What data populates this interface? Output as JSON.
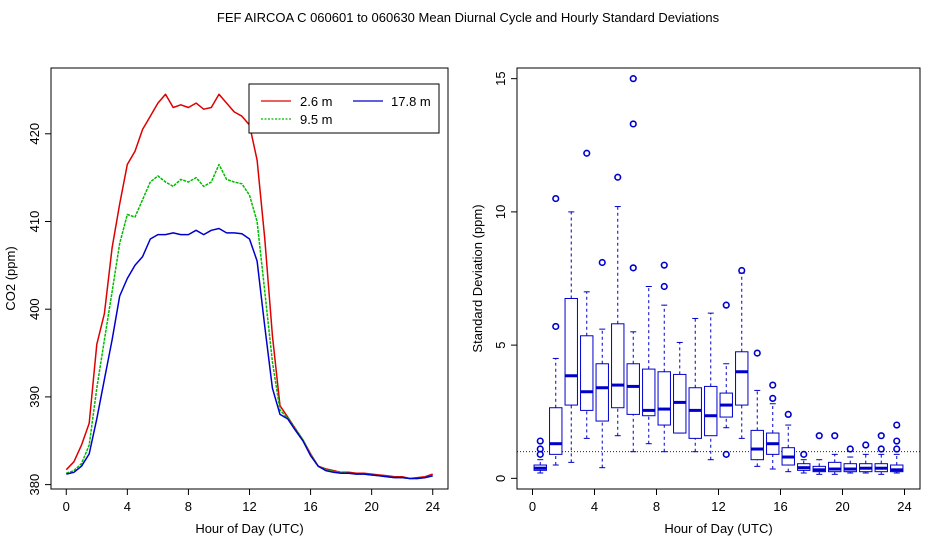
{
  "title": "FEF   AIRCOA C   060601 to 060630   Mean Diurnal Cycle and Hourly Standard Deviations",
  "colors": {
    "red": "#dd0000",
    "green": "#00bb00",
    "blue": "#0000cc",
    "box": "#0000cc"
  },
  "chart_data": [
    {
      "type": "line",
      "xlabel": "Hour of Day (UTC)",
      "ylabel": "CO2 (ppm)",
      "xlim": [
        -1,
        25
      ],
      "ylim": [
        379.5,
        427.5
      ],
      "xticks": [
        0,
        4,
        8,
        12,
        16,
        20,
        24
      ],
      "yticks": [
        380,
        390,
        400,
        410,
        420
      ],
      "legend_position": "top-right",
      "series": [
        {
          "name": "2.6 m",
          "color": "#dd0000",
          "x": [
            0,
            0.5,
            1,
            1.5,
            2,
            2.5,
            3,
            3.5,
            4,
            4.5,
            5,
            5.5,
            6,
            6.5,
            7,
            7.5,
            8,
            8.5,
            9,
            9.5,
            10,
            10.5,
            11,
            11.5,
            12,
            12.5,
            13,
            13.5,
            14,
            14.5,
            15,
            15.5,
            16,
            16.5,
            17,
            17.5,
            18,
            18.5,
            19,
            19.5,
            20,
            20.5,
            21,
            21.5,
            22,
            22.5,
            23,
            23.5,
            24
          ],
          "y": [
            381.7,
            382.6,
            384.5,
            387.0,
            396.0,
            399.5,
            407.0,
            412.0,
            416.5,
            418.0,
            420.5,
            422.0,
            423.5,
            424.5,
            423.0,
            423.3,
            423.0,
            423.5,
            422.8,
            423.0,
            424.5,
            423.5,
            422.5,
            422.0,
            421.0,
            417.0,
            408.0,
            397.0,
            389.0,
            387.7,
            386.4,
            385.1,
            383.5,
            382.1,
            381.8,
            381.6,
            381.4,
            381.4,
            381.3,
            381.3,
            381.2,
            381.1,
            381.0,
            380.9,
            380.9,
            380.7,
            380.8,
            380.9,
            381.2
          ]
        },
        {
          "name": "9.5 m",
          "color": "#00bb00",
          "x": [
            0,
            0.5,
            1,
            1.5,
            2,
            2.5,
            3,
            3.5,
            4,
            4.5,
            5,
            5.5,
            6,
            6.5,
            7,
            7.5,
            8,
            8.5,
            9,
            9.5,
            10,
            10.5,
            11,
            11.5,
            12,
            12.5,
            13,
            13.5,
            14,
            14.5,
            15,
            15.5,
            16,
            16.5,
            17,
            17.5,
            18,
            18.5,
            19,
            19.5,
            20,
            20.5,
            21,
            21.5,
            22,
            22.5,
            23,
            23.5,
            24
          ],
          "y": [
            381.3,
            381.6,
            382.4,
            384.5,
            391.0,
            396.5,
            402.0,
            407.5,
            410.8,
            410.5,
            412.5,
            414.5,
            415.2,
            414.5,
            414.0,
            414.8,
            414.5,
            415.0,
            414.0,
            414.5,
            416.5,
            414.8,
            414.5,
            414.3,
            413.0,
            410.0,
            402.0,
            394.0,
            388.5,
            387.6,
            386.4,
            385.1,
            383.4,
            382.1,
            381.7,
            381.5,
            381.4,
            381.3,
            381.2,
            381.2,
            381.1,
            381.0,
            380.9,
            380.8,
            380.8,
            380.7,
            380.7,
            380.8,
            381.0
          ]
        },
        {
          "name": "17.8 m",
          "color": "#0000cc",
          "x": [
            0,
            0.5,
            1,
            1.5,
            2,
            2.5,
            3,
            3.5,
            4,
            4.5,
            5,
            5.5,
            6,
            6.5,
            7,
            7.5,
            8,
            8.5,
            9,
            9.5,
            10,
            10.5,
            11,
            11.5,
            12,
            12.5,
            13,
            13.5,
            14,
            14.5,
            15,
            15.5,
            16,
            16.5,
            17,
            17.5,
            18,
            18.5,
            19,
            19.5,
            20,
            20.5,
            21,
            21.5,
            22,
            22.5,
            23,
            23.5,
            24
          ],
          "y": [
            381.2,
            381.4,
            382.1,
            383.5,
            387.5,
            392.0,
            396.5,
            401.5,
            403.5,
            405.0,
            406.0,
            408.0,
            408.5,
            408.5,
            408.7,
            408.5,
            408.5,
            409.0,
            408.5,
            409.0,
            409.2,
            408.7,
            408.7,
            408.6,
            408.0,
            405.5,
            398.0,
            391.0,
            388.0,
            387.5,
            386.2,
            385.0,
            383.3,
            382.1,
            381.6,
            381.4,
            381.3,
            381.3,
            381.2,
            381.2,
            381.1,
            381.0,
            380.9,
            380.8,
            380.8,
            380.7,
            380.7,
            380.8,
            381.0
          ]
        }
      ]
    },
    {
      "type": "box",
      "xlabel": "Hour of Day (UTC)",
      "ylabel": "Standard Deviation (ppm)",
      "xlim": [
        -1,
        25
      ],
      "ylim": [
        -0.4,
        15.4
      ],
      "xticks": [
        0,
        4,
        8,
        12,
        16,
        20,
        24
      ],
      "yticks": [
        0,
        5,
        10,
        15
      ],
      "reference_line": 1.0,
      "boxes": [
        {
          "hour": 0.5,
          "min": 0.2,
          "q1": 0.3,
          "median": 0.38,
          "q3": 0.5,
          "max": 0.7,
          "outliers": [
            0.9,
            1.1,
            1.4
          ]
        },
        {
          "hour": 1.5,
          "min": 0.5,
          "q1": 0.9,
          "median": 1.3,
          "q3": 2.65,
          "max": 4.5,
          "outliers": [
            5.7,
            10.5
          ]
        },
        {
          "hour": 2.5,
          "min": 0.6,
          "q1": 2.75,
          "median": 3.85,
          "q3": 6.75,
          "max": 10.0,
          "outliers": []
        },
        {
          "hour": 3.5,
          "min": 1.5,
          "q1": 2.55,
          "median": 3.25,
          "q3": 5.35,
          "max": 7.0,
          "outliers": [
            12.2
          ]
        },
        {
          "hour": 4.5,
          "min": 0.4,
          "q1": 2.15,
          "median": 3.4,
          "q3": 4.3,
          "max": 5.6,
          "outliers": [
            8.1
          ]
        },
        {
          "hour": 5.5,
          "min": 1.6,
          "q1": 2.65,
          "median": 3.5,
          "q3": 5.8,
          "max": 10.2,
          "outliers": [
            11.3
          ]
        },
        {
          "hour": 6.5,
          "min": 1.0,
          "q1": 2.4,
          "median": 3.45,
          "q3": 4.3,
          "max": 5.5,
          "outliers": [
            7.9,
            13.3,
            15.0
          ]
        },
        {
          "hour": 7.5,
          "min": 1.3,
          "q1": 2.35,
          "median": 2.55,
          "q3": 4.1,
          "max": 7.2,
          "outliers": []
        },
        {
          "hour": 8.5,
          "min": 1.0,
          "q1": 2.0,
          "median": 2.6,
          "q3": 4.0,
          "max": 6.5,
          "outliers": [
            7.2,
            8.0
          ]
        },
        {
          "hour": 9.5,
          "min": 1.7,
          "q1": 1.7,
          "median": 2.85,
          "q3": 3.9,
          "max": 5.1,
          "outliers": []
        },
        {
          "hour": 10.5,
          "min": 1.0,
          "q1": 1.5,
          "median": 2.55,
          "q3": 3.4,
          "max": 6.0,
          "outliers": []
        },
        {
          "hour": 11.5,
          "min": 0.7,
          "q1": 1.6,
          "median": 2.35,
          "q3": 3.45,
          "max": 6.2,
          "outliers": []
        },
        {
          "hour": 12.5,
          "min": 1.9,
          "q1": 2.3,
          "median": 2.75,
          "q3": 3.2,
          "max": 4.3,
          "outliers": [
            0.9,
            6.5
          ]
        },
        {
          "hour": 13.5,
          "min": 1.5,
          "q1": 2.75,
          "median": 4.0,
          "q3": 4.75,
          "max": 7.7,
          "outliers": [
            7.8
          ]
        },
        {
          "hour": 14.5,
          "min": 0.45,
          "q1": 0.7,
          "median": 1.1,
          "q3": 1.8,
          "max": 3.3,
          "outliers": [
            4.7
          ]
        },
        {
          "hour": 15.5,
          "min": 0.35,
          "q1": 0.9,
          "median": 1.3,
          "q3": 1.7,
          "max": 2.8,
          "outliers": [
            3.0,
            3.5
          ]
        },
        {
          "hour": 16.5,
          "min": 0.25,
          "q1": 0.5,
          "median": 0.8,
          "q3": 1.15,
          "max": 2.0,
          "outliers": [
            2.4
          ]
        },
        {
          "hour": 17.5,
          "min": 0.2,
          "q1": 0.3,
          "median": 0.4,
          "q3": 0.55,
          "max": 0.7,
          "outliers": [
            0.9
          ]
        },
        {
          "hour": 18.5,
          "min": 0.15,
          "q1": 0.25,
          "median": 0.32,
          "q3": 0.45,
          "max": 0.7,
          "outliers": [
            1.6
          ]
        },
        {
          "hour": 19.5,
          "min": 0.15,
          "q1": 0.25,
          "median": 0.35,
          "q3": 0.6,
          "max": 0.9,
          "outliers": [
            1.6
          ]
        },
        {
          "hour": 20.5,
          "min": 0.2,
          "q1": 0.25,
          "median": 0.35,
          "q3": 0.55,
          "max": 0.8,
          "outliers": [
            1.1
          ]
        },
        {
          "hour": 21.5,
          "min": 0.2,
          "q1": 0.25,
          "median": 0.38,
          "q3": 0.55,
          "max": 0.9,
          "outliers": [
            1.25
          ]
        },
        {
          "hour": 22.5,
          "min": 0.15,
          "q1": 0.25,
          "median": 0.38,
          "q3": 0.55,
          "max": 0.9,
          "outliers": [
            1.1,
            1.6
          ]
        },
        {
          "hour": 23.5,
          "min": 0.2,
          "q1": 0.25,
          "median": 0.32,
          "q3": 0.5,
          "max": 0.9,
          "outliers": [
            1.1,
            1.4,
            2.0
          ]
        }
      ]
    }
  ]
}
